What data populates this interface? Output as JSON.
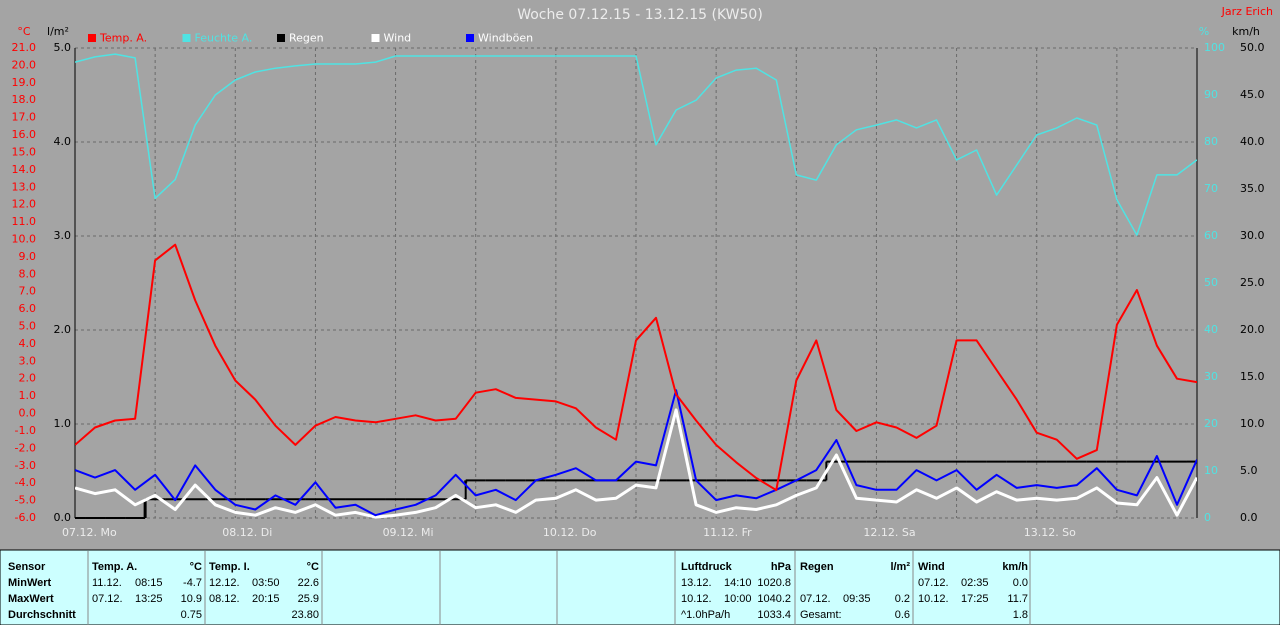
{
  "chart_data": {
    "type": "line",
    "title": "Woche 07.12.15 - 13.12.15 (KW50)",
    "author": "Jarz Erich",
    "x": [
      0,
      0.125,
      0.25,
      0.375,
      0.5,
      0.625,
      0.75,
      0.875,
      1,
      1.125,
      1.25,
      1.375,
      1.5,
      1.625,
      1.75,
      1.875,
      2,
      2.125,
      2.25,
      2.375,
      2.5,
      2.625,
      2.75,
      2.875,
      3,
      3.125,
      3.25,
      3.375,
      3.5,
      3.625,
      3.75,
      3.875,
      4,
      4.125,
      4.25,
      4.375,
      4.5,
      4.625,
      4.75,
      4.875,
      5,
      5.125,
      5.25,
      5.375,
      5.5,
      5.625,
      5.75,
      5.875,
      6,
      6.125,
      6.25,
      6.375,
      6.5,
      6.625,
      6.75,
      6.875,
      7
    ],
    "xlim": [
      0,
      7
    ],
    "xticks": [
      {
        "value": 0,
        "label": "07.12. Mo"
      },
      {
        "value": 1,
        "label": "08.12. Di"
      },
      {
        "value": 2,
        "label": "09.12. Mi"
      },
      {
        "value": 3,
        "label": "10.12. Do"
      },
      {
        "value": 4,
        "label": "11.12. Fr"
      },
      {
        "value": 5,
        "label": "12.12. Sa"
      },
      {
        "value": 6,
        "label": "13.12. So"
      }
    ],
    "xminor_ticks": [
      0.5,
      1.5,
      2.5,
      3.5,
      4.5,
      5.5,
      6.5
    ],
    "axis_labels": {
      "y": "°C",
      "y2": "l/m²",
      "y3": "%",
      "y4": "km/h"
    },
    "axis_colors": {
      "y": "#ff0000",
      "y2": "#000000",
      "y3": "#4fe3e3",
      "y4": "#000000"
    },
    "ylim": [
      -6,
      21
    ],
    "yticks": [
      {
        "value": -6,
        "label": "-6.0"
      },
      {
        "value": -5,
        "label": "-5.0"
      },
      {
        "value": -4,
        "label": "-4.0"
      },
      {
        "value": -3,
        "label": "-3.0"
      },
      {
        "value": -2,
        "label": "-2.0"
      },
      {
        "value": -1,
        "label": "-1.0"
      },
      {
        "value": 0,
        "label": "0.0"
      },
      {
        "value": 1,
        "label": "1.0"
      },
      {
        "value": 2,
        "label": "2.0"
      },
      {
        "value": 3,
        "label": "3.0"
      },
      {
        "value": 4,
        "label": "4.0"
      },
      {
        "value": 5,
        "label": "5.0"
      },
      {
        "value": 6,
        "label": "6.0"
      },
      {
        "value": 7,
        "label": "7.0"
      },
      {
        "value": 8,
        "label": "8.0"
      },
      {
        "value": 9,
        "label": "9.0"
      },
      {
        "value": 10,
        "label": "10.0"
      },
      {
        "value": 11,
        "label": "11.0"
      },
      {
        "value": 12,
        "label": "12.0"
      },
      {
        "value": 13,
        "label": "13.0"
      },
      {
        "value": 14,
        "label": "14.0"
      },
      {
        "value": 15,
        "label": "15.0"
      },
      {
        "value": 16,
        "label": "16.0"
      },
      {
        "value": 17,
        "label": "17.0"
      },
      {
        "value": 18,
        "label": "18.0"
      },
      {
        "value": 19,
        "label": "19.0"
      },
      {
        "value": 20,
        "label": "20.0"
      },
      {
        "value": 21,
        "label": "21.0"
      }
    ],
    "y2lim": [
      0,
      5
    ],
    "y2ticks": [
      {
        "value": 0,
        "label": "0.0"
      },
      {
        "value": 1,
        "label": "1.0"
      },
      {
        "value": 2,
        "label": "2.0"
      },
      {
        "value": 3,
        "label": "3.0"
      },
      {
        "value": 4,
        "label": "4.0"
      },
      {
        "value": 5,
        "label": "5.0"
      }
    ],
    "y3lim": [
      0,
      100
    ],
    "y3ticks": [
      0,
      10,
      20,
      30,
      40,
      50,
      60,
      70,
      80,
      90,
      100
    ],
    "y4lim": [
      0,
      50
    ],
    "y4ticks": [
      {
        "value": 0,
        "label": "0.0"
      },
      {
        "value": 5,
        "label": "5.0"
      },
      {
        "value": 10,
        "label": "10.0"
      },
      {
        "value": 15,
        "label": "15.0"
      },
      {
        "value": 20,
        "label": "20.0"
      },
      {
        "value": 25,
        "label": "25.0"
      },
      {
        "value": 30,
        "label": "30.0"
      },
      {
        "value": 35,
        "label": "35.0"
      },
      {
        "value": 40,
        "label": "40.0"
      },
      {
        "value": 45,
        "label": "45.0"
      },
      {
        "value": 50,
        "label": "50.0"
      }
    ],
    "grid": true,
    "grid_axis": "y2",
    "series": [
      {
        "name": "Temp. A.",
        "color": "#ff0000",
        "text_color": "#ff0000",
        "axis": "y",
        "width": 2,
        "values": [
          -1.8,
          -0.8,
          -0.4,
          -0.3,
          8.8,
          9.7,
          6.5,
          3.9,
          1.9,
          0.8,
          -0.7,
          -1.8,
          -0.7,
          -0.2,
          -0.4,
          -0.5,
          -0.3,
          -0.1,
          -0.4,
          -0.3,
          1.2,
          1.4,
          0.9,
          0.8,
          0.7,
          0.3,
          -0.8,
          -1.5,
          4.2,
          5.5,
          1.1,
          -0.4,
          -1.8,
          -2.8,
          -3.7,
          -4.4,
          1.9,
          4.2,
          0.2,
          -1.0,
          -0.5,
          -0.8,
          -1.4,
          -0.7,
          4.2,
          4.2,
          2.5,
          0.8,
          -1.1,
          -1.5,
          -2.6,
          -2.1,
          5.1,
          7.1,
          3.9,
          2.0,
          1.8
        ]
      },
      {
        "name": "Feuchte A.",
        "color": "#4fe3e3",
        "text_color": "#4fe3e3",
        "axis": "y3",
        "width": 1.5,
        "values": [
          97.0,
          98.1,
          98.7,
          97.9,
          68.0,
          72.0,
          83.6,
          90.0,
          93.2,
          94.9,
          95.7,
          96.2,
          96.6,
          96.6,
          96.6,
          97.0,
          98.3,
          98.3,
          98.3,
          98.3,
          98.3,
          98.3,
          98.3,
          98.3,
          98.3,
          98.3,
          98.3,
          98.3,
          98.3,
          79.4,
          86.8,
          88.9,
          93.6,
          95.3,
          95.7,
          93.2,
          73.0,
          71.9,
          79.4,
          82.6,
          83.6,
          84.7,
          83.0,
          84.7,
          76.2,
          78.3,
          68.7,
          75.1,
          81.5,
          83.0,
          85.1,
          83.6,
          67.7,
          60.2,
          73.0,
          73.0,
          76.2
        ]
      },
      {
        "name": "Regen",
        "color": "#000000",
        "text_color": "#ffffff",
        "axis": "y2",
        "width": 2,
        "step": true,
        "values": [
          0,
          0,
          0,
          0,
          0.2,
          0.2,
          0.2,
          0.2,
          0.2,
          0.2,
          0.2,
          0.2,
          0.2,
          0.2,
          0.2,
          0.2,
          0.2,
          0.2,
          0.2,
          0.2,
          0.4,
          0.4,
          0.4,
          0.4,
          0.4,
          0.4,
          0.4,
          0.4,
          0.4,
          0.4,
          0.4,
          0.4,
          0.4,
          0.4,
          0.4,
          0.4,
          0.4,
          0.4,
          0.6,
          0.6,
          0.6,
          0.6,
          0.6,
          0.6,
          0.6,
          0.6,
          0.6,
          0.6,
          0.6,
          0.6,
          0.6,
          0.6,
          0.6,
          0.6,
          0.6,
          0.6,
          0.6
        ]
      },
      {
        "name": "Wind",
        "color": "#ffffff",
        "text_color": "#ffffff",
        "axis": "y4",
        "width": 3,
        "values": [
          3.2,
          2.6,
          3.0,
          1.4,
          2.4,
          0.9,
          3.5,
          1.4,
          0.6,
          0.3,
          1.1,
          0.6,
          1.4,
          0.3,
          0.6,
          0.1,
          0.3,
          0.6,
          1.1,
          2.4,
          1.1,
          1.4,
          0.6,
          1.9,
          2.1,
          3.0,
          1.9,
          2.1,
          3.5,
          3.2,
          11.5,
          1.4,
          0.6,
          1.1,
          0.9,
          1.4,
          2.4,
          3.2,
          6.7,
          2.1,
          1.9,
          1.7,
          3.0,
          2.1,
          3.2,
          1.7,
          2.8,
          1.9,
          2.1,
          1.9,
          2.1,
          3.2,
          1.6,
          1.4,
          4.3,
          0.3,
          4.3
        ]
      },
      {
        "name": "Windböen",
        "color": "#0000ff",
        "text_color": "#ffffff",
        "axis": "y4",
        "width": 2,
        "values": [
          5.1,
          4.3,
          5.1,
          3.0,
          4.6,
          1.9,
          5.6,
          3.0,
          1.4,
          0.9,
          2.4,
          1.4,
          3.8,
          1.1,
          1.4,
          0.3,
          0.9,
          1.4,
          2.4,
          4.6,
          2.4,
          3.0,
          1.9,
          4.0,
          4.6,
          5.3,
          4.0,
          4.0,
          6.0,
          5.6,
          13.6,
          4.0,
          1.9,
          2.4,
          2.1,
          3.0,
          4.0,
          5.1,
          8.3,
          3.5,
          3.0,
          3.0,
          5.1,
          4.0,
          5.1,
          3.0,
          4.6,
          3.2,
          3.5,
          3.2,
          3.5,
          5.3,
          3.0,
          2.4,
          6.6,
          1.4,
          6.2
        ]
      }
    ]
  },
  "stats": {
    "row_labels": [
      "Sensor",
      "MinWert",
      "MaxWert",
      "Durchschnitt"
    ],
    "blocks": [
      {
        "title": "Temp. A.",
        "unit": "°C",
        "rows": [
          {
            "date": "11.12.",
            "time": "08:15",
            "value": "-4.7"
          },
          {
            "date": "07.12.",
            "time": "13:25",
            "value": "10.9"
          },
          {
            "value": "0.75"
          }
        ]
      },
      {
        "title": "Temp. I.",
        "unit": "°C",
        "rows": [
          {
            "date": "12.12.",
            "time": "03:50",
            "value": "22.6"
          },
          {
            "date": "08.12.",
            "time": "20:15",
            "value": "25.9"
          },
          {
            "value": "23.80"
          }
        ]
      },
      {
        "title": "Luftdruck",
        "unit": "hPa",
        "rows": [
          {
            "date": "13.12.",
            "time": "14:10",
            "value": "1020.8"
          },
          {
            "date": "10.12.",
            "time": "10:00",
            "value": "1040.2"
          },
          {
            "date": "^1.0hPa/h",
            "value": "1033.4"
          }
        ]
      },
      {
        "title": "Regen",
        "unit": "l/m²",
        "rows": [
          null,
          {
            "date": "07.12.",
            "time": "09:35",
            "value": "0.2"
          },
          {
            "date": "Gesamt:",
            "value": "0.6"
          }
        ]
      },
      {
        "title": "Wind",
        "unit": "km/h",
        "rows": [
          {
            "date": "07.12.",
            "time": "02:35",
            "value": "0.0"
          },
          {
            "date": "10.12.",
            "time": "17:25",
            "value": "11.7"
          },
          {
            "value": "1.8"
          }
        ]
      }
    ]
  }
}
